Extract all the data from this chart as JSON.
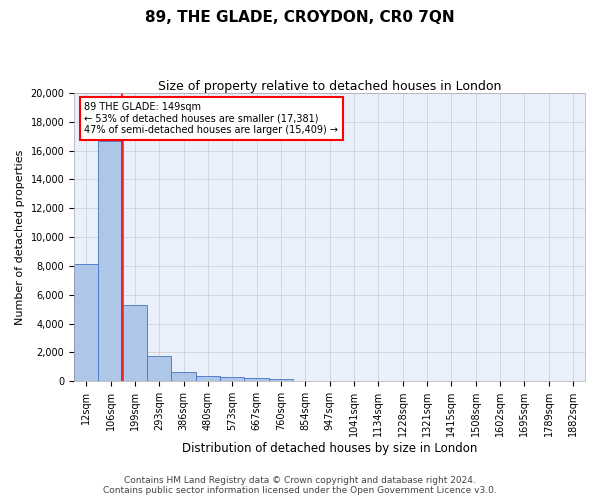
{
  "title": "89, THE GLADE, CROYDON, CR0 7QN",
  "subtitle": "Size of property relative to detached houses in London",
  "xlabel": "Distribution of detached houses by size in London",
  "ylabel": "Number of detached properties",
  "footer_line1": "Contains HM Land Registry data © Crown copyright and database right 2024.",
  "footer_line2": "Contains public sector information licensed under the Open Government Licence v3.0.",
  "categories": [
    "12sqm",
    "106sqm",
    "199sqm",
    "293sqm",
    "386sqm",
    "480sqm",
    "573sqm",
    "667sqm",
    "760sqm",
    "854sqm",
    "947sqm",
    "1041sqm",
    "1134sqm",
    "1228sqm",
    "1321sqm",
    "1415sqm",
    "1508sqm",
    "1602sqm",
    "1695sqm",
    "1789sqm",
    "1882sqm"
  ],
  "values": [
    8100,
    16650,
    5300,
    1750,
    650,
    350,
    270,
    200,
    170,
    0,
    0,
    0,
    0,
    0,
    0,
    0,
    0,
    0,
    0,
    0,
    0
  ],
  "bar_color": "#aec6e8",
  "bar_edge_color": "#4472c4",
  "property_value_sqm": 149,
  "annotation_text": "89 THE GLADE: 149sqm\n← 53% of detached houses are smaller (17,381)\n47% of semi-detached houses are larger (15,409) →",
  "annotation_box_color": "white",
  "annotation_box_edge_color": "red",
  "vline_color": "red",
  "ylim": [
    0,
    20000
  ],
  "yticks": [
    0,
    2000,
    4000,
    6000,
    8000,
    10000,
    12000,
    14000,
    16000,
    18000,
    20000
  ],
  "grid_color": "#cccccc",
  "bg_color": "#eaf0fb",
  "title_fontsize": 11,
  "subtitle_fontsize": 9,
  "xlabel_fontsize": 8.5,
  "ylabel_fontsize": 8,
  "tick_fontsize": 7,
  "annotation_fontsize": 7,
  "footer_fontsize": 6.5
}
